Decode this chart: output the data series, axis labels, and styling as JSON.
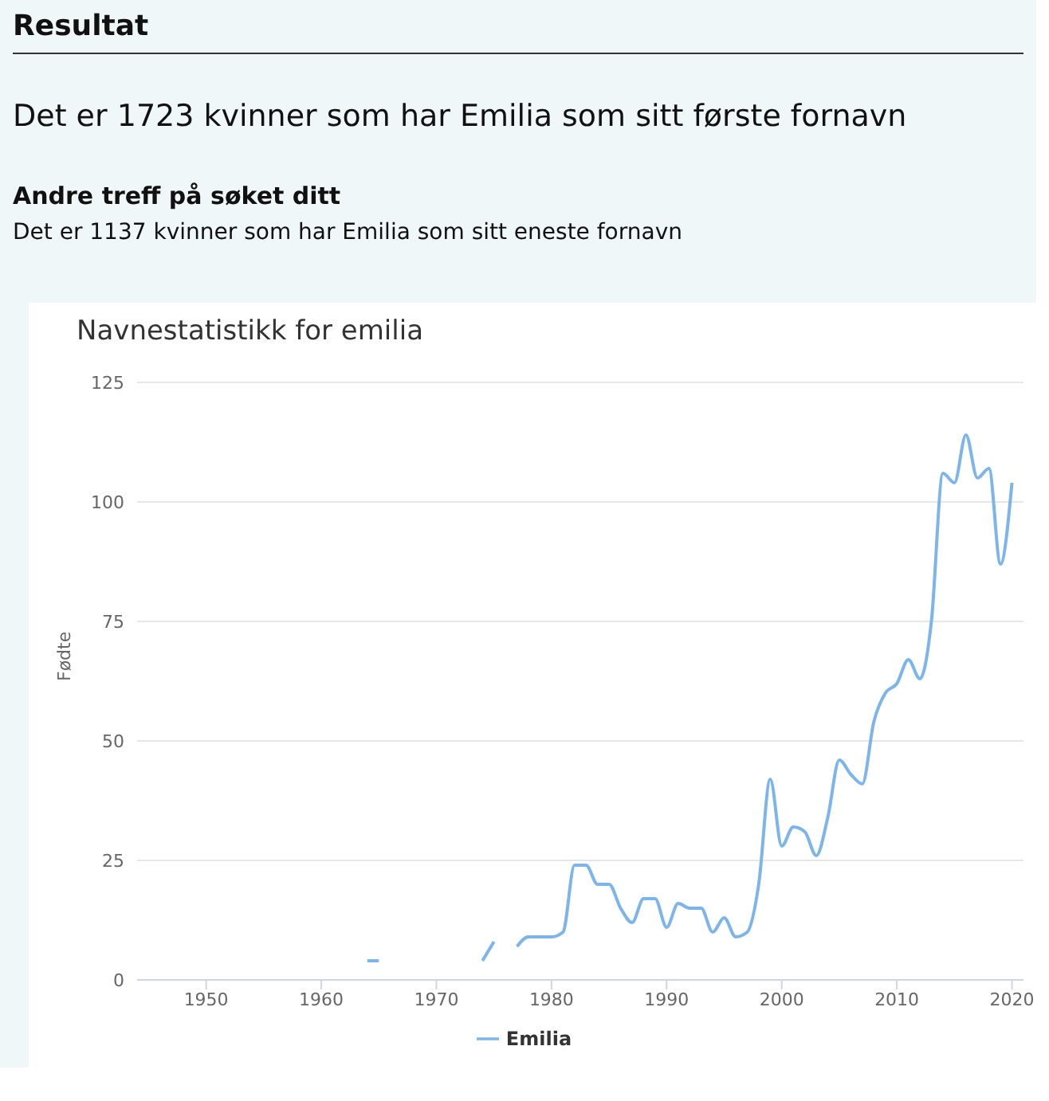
{
  "chart_data": {
    "type": "line",
    "title": "Navnestatistikk for emilia",
    "ylabel": "Fødte",
    "annotations": [
      "Resultat",
      "Det er 1723 kvinner som har Emilia som sitt første fornavn",
      "Andre treff på søket ditt",
      "Det er 1137 kvinner som har Emilia som sitt eneste fornavn"
    ],
    "x": [
      1964,
      1965,
      1966,
      1967,
      1968,
      1969,
      1970,
      1971,
      1972,
      1973,
      1974,
      1975,
      1976,
      1977,
      1978,
      1979,
      1980,
      1981,
      1982,
      1983,
      1984,
      1985,
      1986,
      1987,
      1988,
      1989,
      1990,
      1991,
      1992,
      1993,
      1994,
      1995,
      1996,
      1997,
      1998,
      1999,
      2000,
      2001,
      2002,
      2003,
      2004,
      2005,
      2006,
      2007,
      2008,
      2009,
      2010,
      2011,
      2012,
      2013,
      2014,
      2015,
      2016,
      2017,
      2018,
      2019,
      2020
    ],
    "series": [
      {
        "name": "Emilia",
        "color": "#7cb5ec",
        "values": [
          4,
          4,
          null,
          null,
          null,
          null,
          null,
          null,
          null,
          null,
          4,
          8,
          null,
          7,
          9,
          9,
          9,
          10,
          24,
          24,
          20,
          20,
          15,
          12,
          17,
          17,
          11,
          16,
          15,
          15,
          10,
          13,
          9,
          10,
          20,
          42,
          28,
          32,
          31,
          26,
          34,
          46,
          43,
          41,
          54,
          60,
          62,
          67,
          63,
          75,
          106,
          104,
          114,
          105,
          107,
          87,
          104
        ]
      }
    ],
    "xlim": [
      1944,
      2021
    ],
    "xticks": [
      1950,
      1960,
      1970,
      1980,
      1990,
      2000,
      2010,
      2020
    ],
    "ylim": [
      0,
      125
    ],
    "yticks": [
      0,
      25,
      50,
      75,
      100,
      125
    ],
    "grid": "y",
    "legend": "bottom",
    "marker": "none",
    "line_style": "solid"
  }
}
